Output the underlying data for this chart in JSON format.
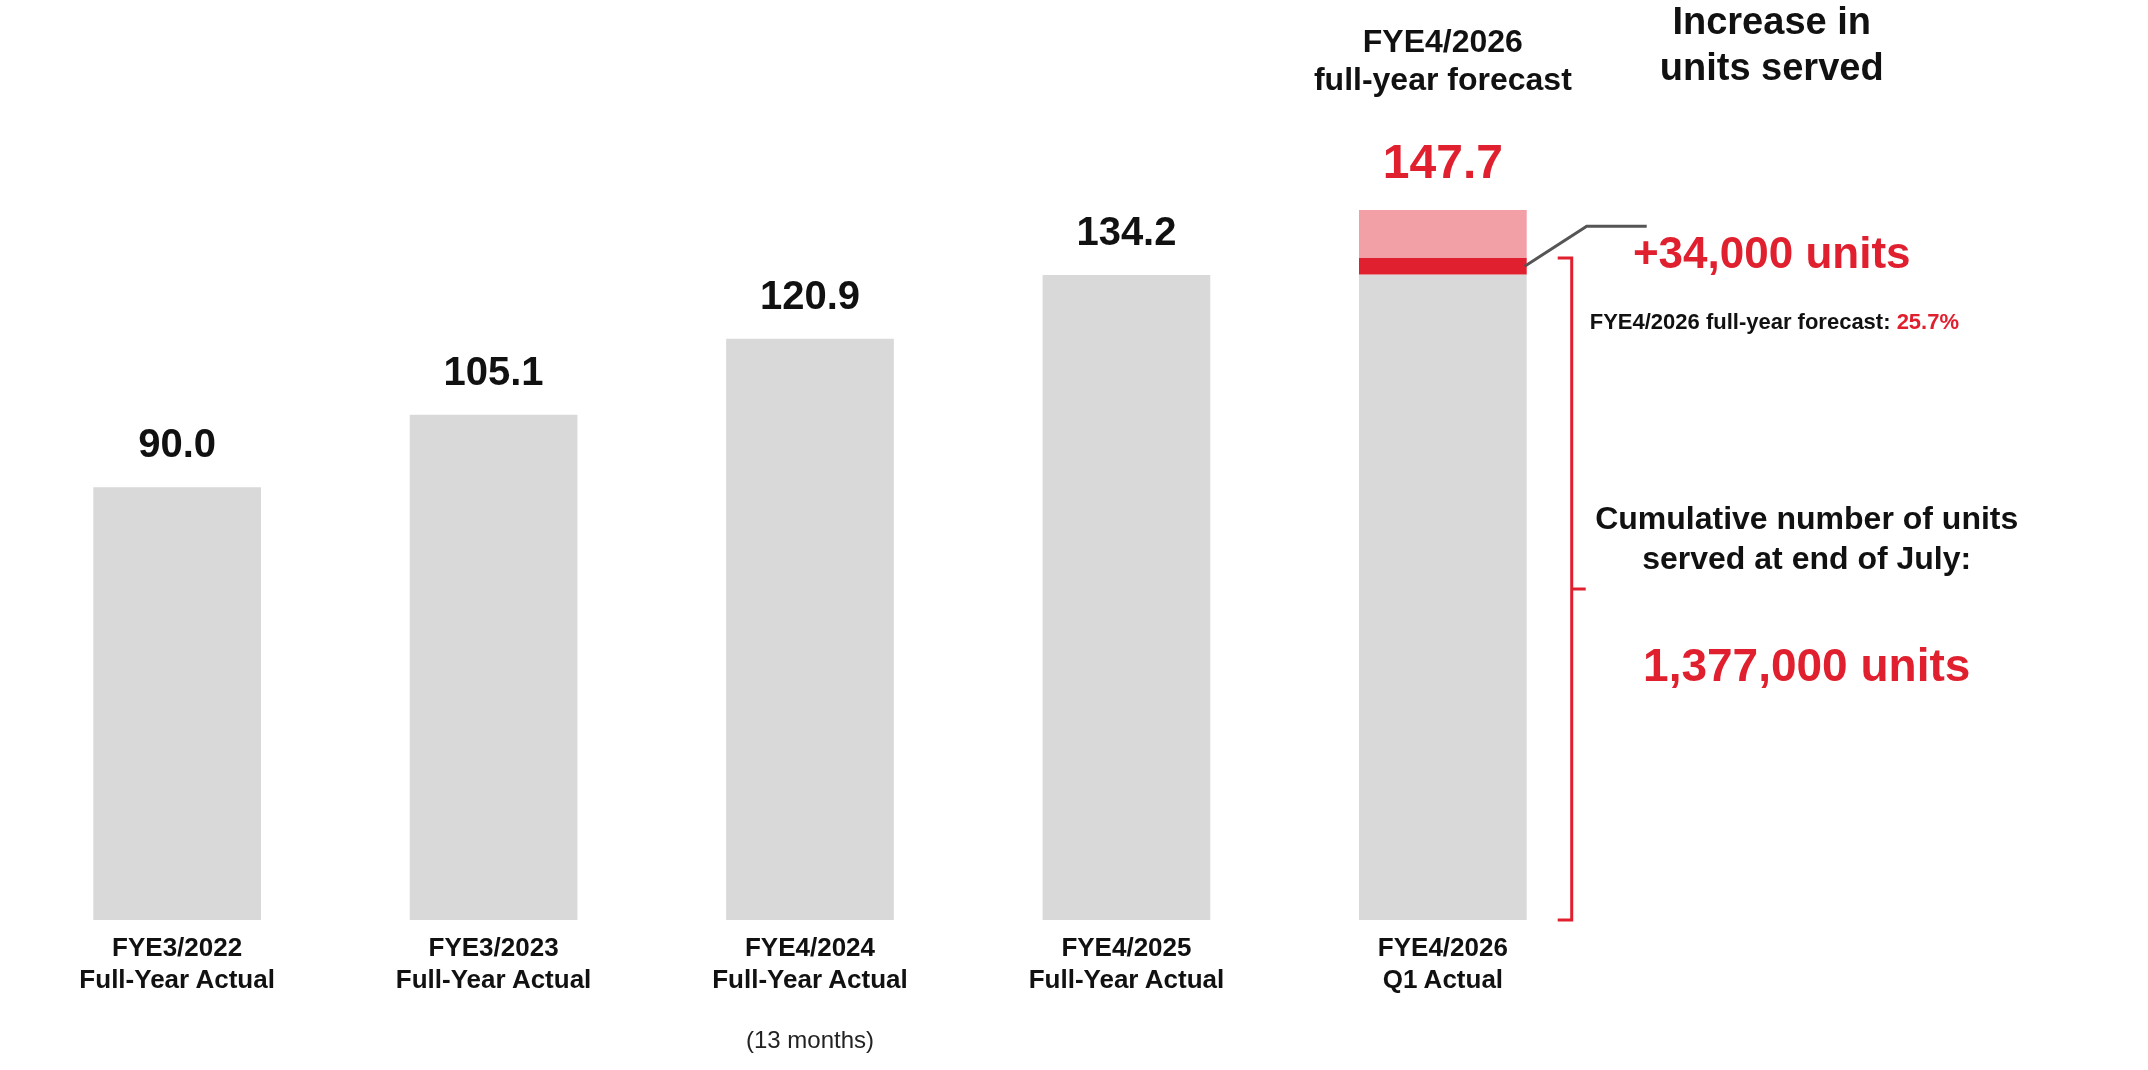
{
  "chart_data": {
    "type": "bar",
    "stacked": true,
    "categories": [
      "FYE3/2022\nFull-Year Actual",
      "FYE3/2023\nFull-Year Actual",
      "FYE4/2024\nFull-Year Actual",
      "FYE4/2025\nFull-Year Actual",
      "FYE4/2026\nQ1 Actual"
    ],
    "series": [
      {
        "color": "#d9d9d9",
        "values": [
          90.0,
          105.1,
          120.9,
          134.2,
          134.3
        ],
        "value_labels": [
          "90.0",
          "105.1",
          "120.9",
          "134.2",
          null
        ]
      },
      {
        "color": "#e0202e",
        "values": [
          null,
          null,
          null,
          null,
          3.4
        ]
      },
      {
        "color": "#f2a0a6",
        "values": [
          null,
          null,
          null,
          null,
          10.0
        ]
      }
    ],
    "totals": [
      null,
      null,
      null,
      null,
      "147.7"
    ],
    "annotations": [
      "FYE4/2026\nfull-year forecast",
      "Increase in\nunits served",
      "+34,000 units",
      "FYE4/2026 full-year forecast: 25.7%",
      "Cumulative number of units\nserved at end of July:",
      "1,377,000 units",
      "(13 months)"
    ]
  }
}
